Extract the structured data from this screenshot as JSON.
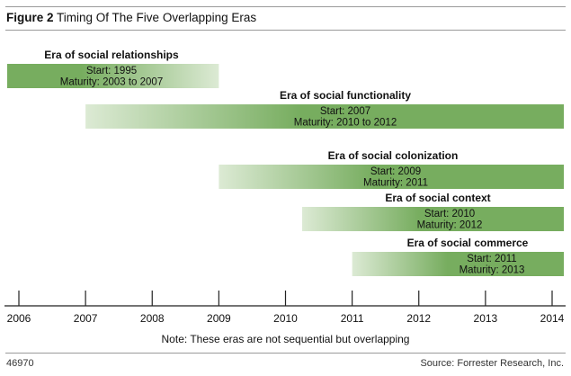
{
  "figure": {
    "label": "Figure 2",
    "title": "Timing Of The Five Overlapping Eras",
    "note": "Note: These eras are not sequential but overlapping",
    "figure_id": "46970",
    "source": "Source: Forrester Research, Inc."
  },
  "colors": {
    "bar_solid": "#77ad5f",
    "bar_fade": "#dcead4",
    "axis": "#222222",
    "rule": "#9a9a9a"
  },
  "chart_data": {
    "type": "gantt",
    "title": "Timing Of The Five Overlapping Eras",
    "xlabel": "",
    "ylabel": "",
    "x_ticks": [
      "2006",
      "2007",
      "2008",
      "2009",
      "2010",
      "2011",
      "2012",
      "2013",
      "2014"
    ],
    "xlim": [
      2006,
      2014.2
    ],
    "series": [
      {
        "name": "Era of social relationships",
        "start_year": 2006,
        "end_year": 2009,
        "solid_side": "left",
        "lines": [
          "Start: 1995",
          "Maturity: 2003 to 2007"
        ]
      },
      {
        "name": "Era of social functionality",
        "start_year": 2007,
        "end_year": 2014.2,
        "solid_side": "right",
        "lines": [
          "Start: 2007",
          "Maturity: 2010 to 2012"
        ]
      },
      {
        "name": "Era of social colonization",
        "start_year": 2009,
        "end_year": 2014.2,
        "solid_side": "right",
        "lines": [
          "Start: 2009",
          "Maturity: 2011"
        ]
      },
      {
        "name": "Era of social context",
        "start_year": 2010.25,
        "end_year": 2014.2,
        "solid_side": "right",
        "lines": [
          "Start: 2010",
          "Maturity: 2012"
        ]
      },
      {
        "name": "Era of social commerce",
        "start_year": 2011,
        "end_year": 2014.2,
        "solid_side": "right",
        "lines": [
          "Start: 2011",
          "Maturity: 2013"
        ]
      }
    ]
  }
}
